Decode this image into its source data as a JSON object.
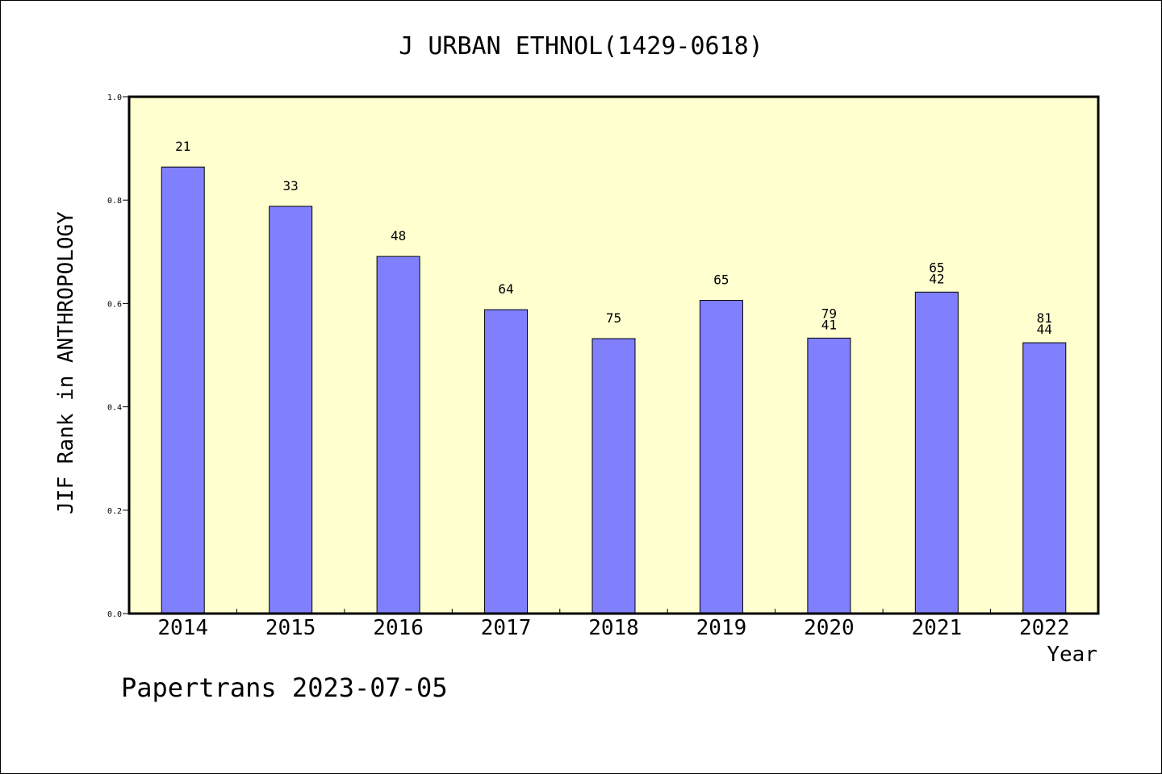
{
  "chart_data": {
    "type": "bar",
    "title": "J URBAN ETHNOL(1429-0618)",
    "xlabel": "Year",
    "ylabel": "JIF Rank in ANTHROPOLOGY",
    "ylim": [
      0,
      1.0
    ],
    "yticks": [
      "0.0",
      "0.2",
      "0.4",
      "0.6",
      "0.8",
      "1.0"
    ],
    "categories": [
      "2014",
      "2015",
      "2016",
      "2017",
      "2018",
      "2019",
      "2020",
      "2021",
      "2022"
    ],
    "values": [
      0.864,
      0.788,
      0.691,
      0.588,
      0.532,
      0.606,
      0.533,
      0.622,
      0.524
    ],
    "labels_lower": [
      "21",
      "33",
      "48",
      "64",
      "75",
      "65",
      "41",
      "42",
      "44"
    ],
    "labels_upper": [
      "",
      "",
      "",
      "",
      "",
      "",
      "79",
      "65",
      "81"
    ],
    "grid": false,
    "colors": {
      "bar": "#8080ff",
      "plot_bg": "#ffffd0",
      "axis": "#000000"
    }
  },
  "footer": {
    "credit": "Papertrans 2023-07-05"
  }
}
